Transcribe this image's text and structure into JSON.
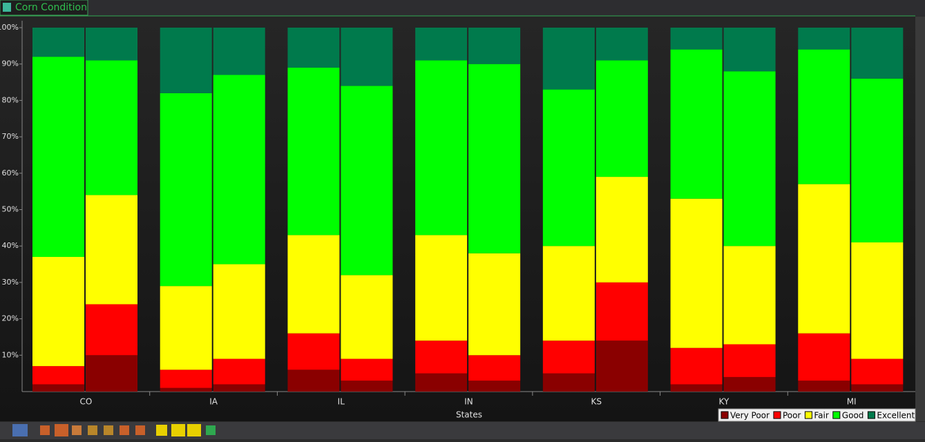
{
  "chart_data": {
    "type": "stacked-bar",
    "title": "Corn Condition",
    "x_label": "States",
    "categories": [
      "CO",
      "IA",
      "IL",
      "IN",
      "KS",
      "KY",
      "MI"
    ],
    "series": [
      {
        "name": "Very Poor",
        "color": "#8a0000",
        "values": [
          [
            2,
            10
          ],
          [
            1,
            2
          ],
          [
            6,
            3
          ],
          [
            5,
            3
          ],
          [
            5,
            14
          ],
          [
            2,
            4
          ],
          [
            3,
            2
          ]
        ]
      },
      {
        "name": "Poor",
        "color": "#ff0000",
        "values": [
          [
            5,
            14
          ],
          [
            5,
            7
          ],
          [
            10,
            6
          ],
          [
            9,
            7
          ],
          [
            9,
            16
          ],
          [
            10,
            9
          ],
          [
            13,
            7
          ]
        ]
      },
      {
        "name": "Fair",
        "color": "#ffff00",
        "values": [
          [
            30,
            30
          ],
          [
            23,
            26
          ],
          [
            27,
            23
          ],
          [
            29,
            28
          ],
          [
            26,
            29
          ],
          [
            41,
            27
          ],
          [
            41,
            32
          ]
        ]
      },
      {
        "name": "Good",
        "color": "#00ff00",
        "values": [
          [
            55,
            37
          ],
          [
            53,
            52
          ],
          [
            46,
            52
          ],
          [
            48,
            52
          ],
          [
            43,
            32
          ],
          [
            41,
            48
          ],
          [
            37,
            45
          ]
        ]
      },
      {
        "name": "Excellent",
        "color": "#007a4c",
        "values": [
          [
            8,
            9
          ],
          [
            18,
            13
          ],
          [
            11,
            16
          ],
          [
            9,
            10
          ],
          [
            17,
            9
          ],
          [
            6,
            12
          ],
          [
            6,
            14
          ]
        ]
      }
    ],
    "ylim": [
      0,
      100
    ],
    "yticks": [
      {
        "value": 10,
        "label": "10%"
      },
      {
        "value": 20,
        "label": "20%"
      },
      {
        "value": 30,
        "label": "30%"
      },
      {
        "value": 40,
        "label": "40%"
      },
      {
        "value": 50,
        "label": "50%"
      },
      {
        "value": 60,
        "label": "60%"
      },
      {
        "value": 70,
        "label": "70%"
      },
      {
        "value": 80,
        "label": "80%"
      },
      {
        "value": 90,
        "label": "90%"
      },
      {
        "value": 100,
        "label": "100%"
      }
    ],
    "legend": "bottom-right"
  }
}
